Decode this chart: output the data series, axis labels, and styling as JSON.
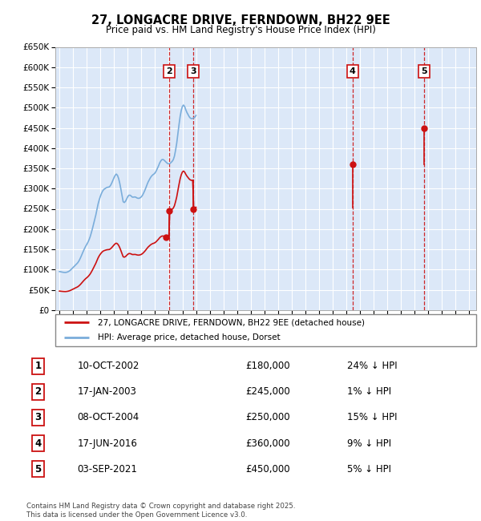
{
  "title": "27, LONGACRE DRIVE, FERNDOWN, BH22 9EE",
  "subtitle": "Price paid vs. HM Land Registry's House Price Index (HPI)",
  "ylim": [
    0,
    650000
  ],
  "yticks": [
    0,
    50000,
    100000,
    150000,
    200000,
    250000,
    300000,
    350000,
    400000,
    450000,
    500000,
    550000,
    600000,
    650000
  ],
  "xlim_start": 1994.7,
  "xlim_end": 2025.5,
  "background_color": "#dce8f8",
  "grid_color": "#c8d8e8",
  "hpi_color": "#7aaddb",
  "price_color": "#cc1111",
  "sales": [
    {
      "num": 1,
      "year": 2002.78,
      "price": 180000
    },
    {
      "num": 2,
      "year": 2003.04,
      "price": 245000
    },
    {
      "num": 3,
      "year": 2004.77,
      "price": 250000
    },
    {
      "num": 4,
      "year": 2016.46,
      "price": 360000
    },
    {
      "num": 5,
      "year": 2021.67,
      "price": 450000
    }
  ],
  "table_rows": [
    {
      "num": 1,
      "date": "10-OCT-2002",
      "price": "£180,000",
      "hpi": "24% ↓ HPI"
    },
    {
      "num": 2,
      "date": "17-JAN-2003",
      "price": "£245,000",
      "hpi": "1% ↓ HPI"
    },
    {
      "num": 3,
      "date": "08-OCT-2004",
      "price": "£250,000",
      "hpi": "15% ↓ HPI"
    },
    {
      "num": 4,
      "date": "17-JUN-2016",
      "price": "£360,000",
      "hpi": "9% ↓ HPI"
    },
    {
      "num": 5,
      "date": "03-SEP-2021",
      "price": "£450,000",
      "hpi": "5% ↓ HPI"
    }
  ],
  "legend_line1": "27, LONGACRE DRIVE, FERNDOWN, BH22 9EE (detached house)",
  "legend_line2": "HPI: Average price, detached house, Dorset",
  "footer": "Contains HM Land Registry data © Crown copyright and database right 2025.\nThis data is licensed under the Open Government Licence v3.0.",
  "hpi_base_value": 95000,
  "hpi_index": [
    100.0,
    99.5,
    98.8,
    98.2,
    97.8,
    97.5,
    97.9,
    98.8,
    100.1,
    102.0,
    104.5,
    107.5,
    110.5,
    113.5,
    116.5,
    119.5,
    122.5,
    127.0,
    132.5,
    139.0,
    146.0,
    153.0,
    159.5,
    165.5,
    170.5,
    176.0,
    182.5,
    190.5,
    200.5,
    211.5,
    223.5,
    235.5,
    247.5,
    262.0,
    276.0,
    287.0,
    296.0,
    303.5,
    309.5,
    313.5,
    315.5,
    317.5,
    319.0,
    319.5,
    320.5,
    324.5,
    330.5,
    337.5,
    344.5,
    350.5,
    353.5,
    350.0,
    342.0,
    329.5,
    314.0,
    297.5,
    281.5,
    279.5,
    282.5,
    288.5,
    294.5,
    298.5,
    298.5,
    296.5,
    293.5,
    293.5,
    294.0,
    293.5,
    291.5,
    290.5,
    290.5,
    292.0,
    294.5,
    298.5,
    304.5,
    311.0,
    318.5,
    326.5,
    333.5,
    339.0,
    344.5,
    348.5,
    351.5,
    353.5,
    356.5,
    361.5,
    368.0,
    374.5,
    382.0,
    387.5,
    391.0,
    391.5,
    389.5,
    386.5,
    383.5,
    381.0,
    380.0,
    381.0,
    383.5,
    386.5,
    391.0,
    400.0,
    415.5,
    433.5,
    457.5,
    481.0,
    503.0,
    519.0,
    529.5,
    533.0,
    529.0,
    520.5,
    513.5,
    508.0,
    502.5,
    499.0,
    497.5,
    498.0,
    499.5,
    502.0,
    506.0
  ]
}
